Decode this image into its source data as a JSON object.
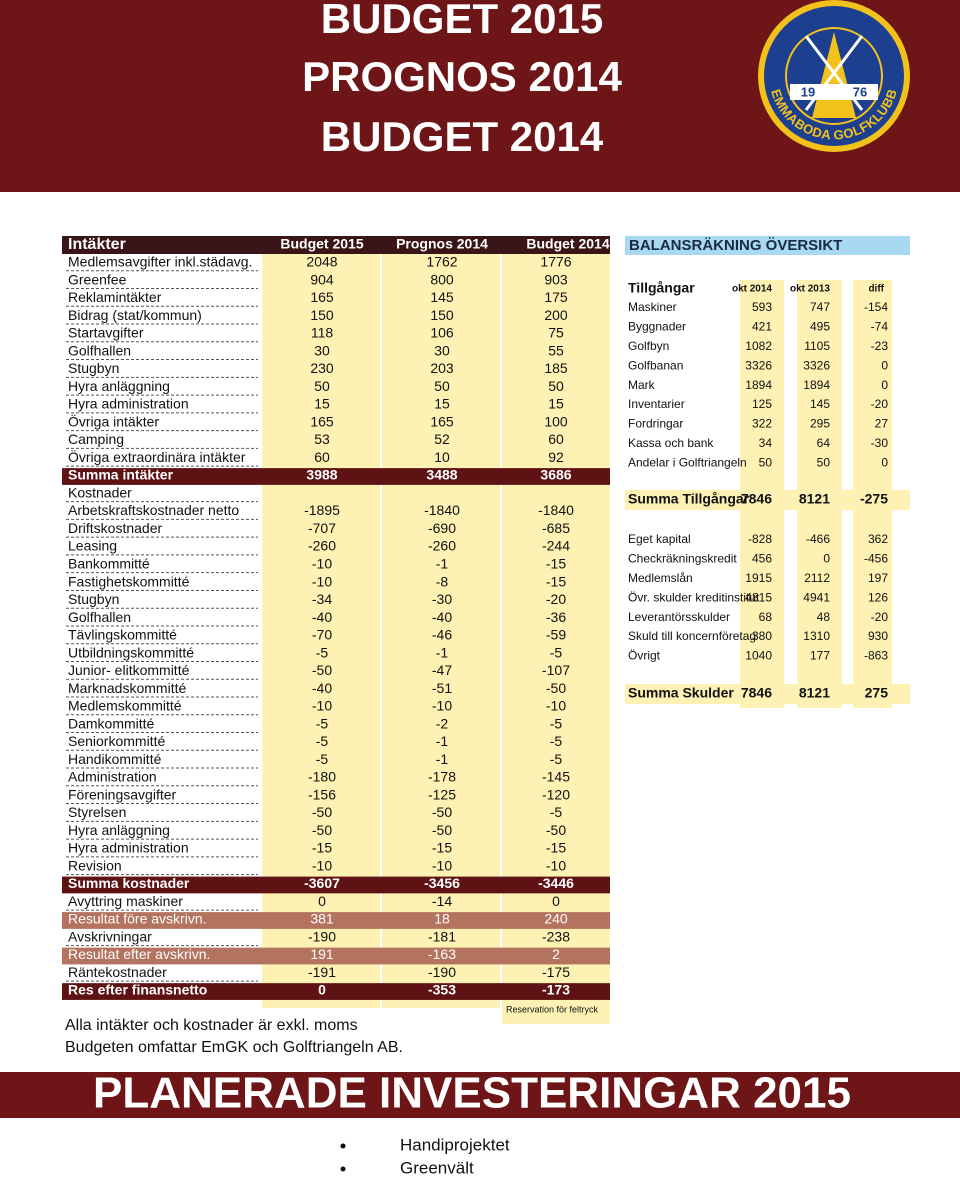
{
  "header": {
    "titles": [
      "BUDGET 2015",
      "PROGNOS 2014",
      "BUDGET 2014"
    ]
  },
  "logo": {
    "year_left": "19",
    "year_right": "76",
    "name": "EMMABODA GOLFKLUBB"
  },
  "budget": {
    "columns": [
      "Intäkter",
      "Budget 2015",
      "Prognos 2014",
      "Budget 2014"
    ],
    "rows": [
      {
        "label": "Medlemsavgifter inkl.städavg.",
        "values": [
          2048,
          1762,
          1776
        ]
      },
      {
        "label": "Greenfee",
        "values": [
          904,
          800,
          903
        ]
      },
      {
        "label": "Reklamintäkter",
        "values": [
          165,
          145,
          175
        ]
      },
      {
        "label": "Bidrag (stat/kommun)",
        "values": [
          150,
          150,
          200
        ]
      },
      {
        "label": "Startavgifter",
        "values": [
          118,
          106,
          75
        ]
      },
      {
        "label": "Golfhallen",
        "values": [
          30,
          30,
          55
        ]
      },
      {
        "label": "Stugbyn",
        "values": [
          230,
          203,
          185
        ]
      },
      {
        "label": "Hyra anläggning",
        "values": [
          50,
          50,
          50
        ]
      },
      {
        "label": "Hyra administration",
        "values": [
          15,
          15,
          15
        ]
      },
      {
        "label": "Övriga intäkter",
        "values": [
          165,
          165,
          100
        ]
      },
      {
        "label": "Camping",
        "values": [
          53,
          52,
          60
        ]
      },
      {
        "label": "Övriga extraordinära intäkter",
        "values": [
          60,
          10,
          92
        ]
      },
      {
        "label": "Summa intäkter",
        "values": [
          3988,
          3488,
          3686
        ],
        "color": "#5e1214"
      },
      {
        "label": "Kostnader"
      },
      {
        "label": "Arbetskraftskostnader netto",
        "values": [
          -1895,
          -1840,
          -1840
        ]
      },
      {
        "label": "Driftskostnader",
        "values": [
          -707,
          -690,
          -685
        ]
      },
      {
        "label": "Leasing",
        "values": [
          -260,
          -260,
          -244
        ]
      },
      {
        "label": "Bankommitté",
        "values": [
          -10,
          -1,
          -15
        ]
      },
      {
        "label": "Fastighetskommitté",
        "values": [
          -10,
          -8,
          -15
        ]
      },
      {
        "label": "Stugbyn",
        "values": [
          -34,
          -30,
          -20
        ]
      },
      {
        "label": "Golfhallen",
        "values": [
          -40,
          -40,
          -36
        ]
      },
      {
        "label": "Tävlingskommitté",
        "values": [
          -70,
          -46,
          -59
        ]
      },
      {
        "label": "Utbildningskommitté",
        "values": [
          -5,
          -1,
          -5
        ]
      },
      {
        "label": "Junior- elitkommitté",
        "values": [
          -50,
          -47,
          -107
        ]
      },
      {
        "label": "Marknadskommitté",
        "values": [
          -40,
          -51,
          -50
        ]
      },
      {
        "label": "Medlemskommitté",
        "values": [
          -10,
          -10,
          -10
        ]
      },
      {
        "label": "Damkommitté",
        "values": [
          -5,
          -2,
          -5
        ]
      },
      {
        "label": "Seniorkommitté",
        "values": [
          -5,
          -1,
          -5
        ]
      },
      {
        "label": "Handikommitté",
        "values": [
          -5,
          -1,
          -5
        ]
      },
      {
        "label": "Administration",
        "values": [
          -180,
          -178,
          -145
        ]
      },
      {
        "label": "Föreningsavgifter",
        "values": [
          -156,
          -125,
          -120
        ]
      },
      {
        "label": "Styrelsen",
        "values": [
          -50,
          -50,
          -5
        ]
      },
      {
        "label": "Hyra anläggning",
        "values": [
          -50,
          -50,
          -50
        ]
      },
      {
        "label": "Hyra administration",
        "values": [
          -15,
          -15,
          -15
        ]
      },
      {
        "label": "Revision",
        "values": [
          -10,
          -10,
          -10
        ]
      },
      {
        "label": "Summa kostnader",
        "values": [
          -3607,
          -3456,
          -3446
        ],
        "color": "#5e1214"
      },
      {
        "label": "Avyttring maskiner",
        "values": [
          0,
          -14,
          0
        ]
      },
      {
        "label": "Resultat före avskrivn.",
        "values": [
          381,
          18,
          240
        ],
        "color": "#b3735f"
      },
      {
        "label": "Avskrivningar",
        "values": [
          -190,
          -181,
          -238
        ]
      },
      {
        "label": "Resultat efter avskrivn.",
        "values": [
          191,
          -163,
          2
        ],
        "color": "#b3735f"
      },
      {
        "label": "Räntekostnader",
        "values": [
          -191,
          -190,
          -175
        ]
      },
      {
        "label": "Res efter finansnetto",
        "values": [
          0,
          -353,
          -173
        ],
        "color": "#5e1214"
      }
    ],
    "footnote": "Reservation för feltryck"
  },
  "notes": [
    "Alla intäkter och kostnader är exkl. moms",
    "Budgeten omfattar EmGK och Golftriangeln AB."
  ],
  "balance": {
    "title": "BALANSRÄKNING ÖVERSIKT",
    "columns": [
      "Tillgångar",
      "okt 2014",
      "okt 2013",
      "diff"
    ],
    "assets": [
      {
        "label": "Maskiner",
        "values": [
          593,
          747,
          -154
        ]
      },
      {
        "label": "Byggnader",
        "values": [
          421,
          495,
          -74
        ]
      },
      {
        "label": "Golfbyn",
        "values": [
          1082,
          1105,
          -23
        ]
      },
      {
        "label": "Golfbanan",
        "values": [
          3326,
          3326,
          0
        ]
      },
      {
        "label": "Mark",
        "values": [
          1894,
          1894,
          0
        ]
      },
      {
        "label": "Inventarier",
        "values": [
          125,
          145,
          -20
        ]
      },
      {
        "label": "Fordringar",
        "values": [
          322,
          295,
          27
        ]
      },
      {
        "label": "Kassa och bank",
        "values": [
          34,
          64,
          -30
        ]
      },
      {
        "label": "Andelar i Golftriangeln",
        "values": [
          50,
          50,
          0
        ]
      }
    ],
    "assets_total": {
      "label": "Summa Tillgångar",
      "values": [
        7846,
        8121,
        -275
      ]
    },
    "liabilities": [
      {
        "label": "Eget kapital",
        "values": [
          -828,
          -466,
          362
        ]
      },
      {
        "label": "Checkräkningskredit",
        "values": [
          456,
          0,
          -456
        ]
      },
      {
        "label": "Medlemslån",
        "values": [
          1915,
          2112,
          197
        ]
      },
      {
        "label": "Övr. skulder kreditinstitut",
        "values": [
          4815,
          4941,
          126
        ]
      },
      {
        "label": "Leverantörsskulder",
        "values": [
          68,
          48,
          -20
        ]
      },
      {
        "label": "Skuld till koncernföretag",
        "values": [
          380,
          1310,
          930
        ]
      },
      {
        "label": "Övrigt",
        "values": [
          1040,
          177,
          -863
        ]
      }
    ],
    "liabilities_total": {
      "label": "Summa Skulder",
      "values": [
        7846,
        8121,
        275
      ]
    }
  },
  "investments": {
    "title": "PLANERADE INVESTERINGAR 2015",
    "items": [
      "Handiprojektet",
      "Greenvält"
    ]
  }
}
